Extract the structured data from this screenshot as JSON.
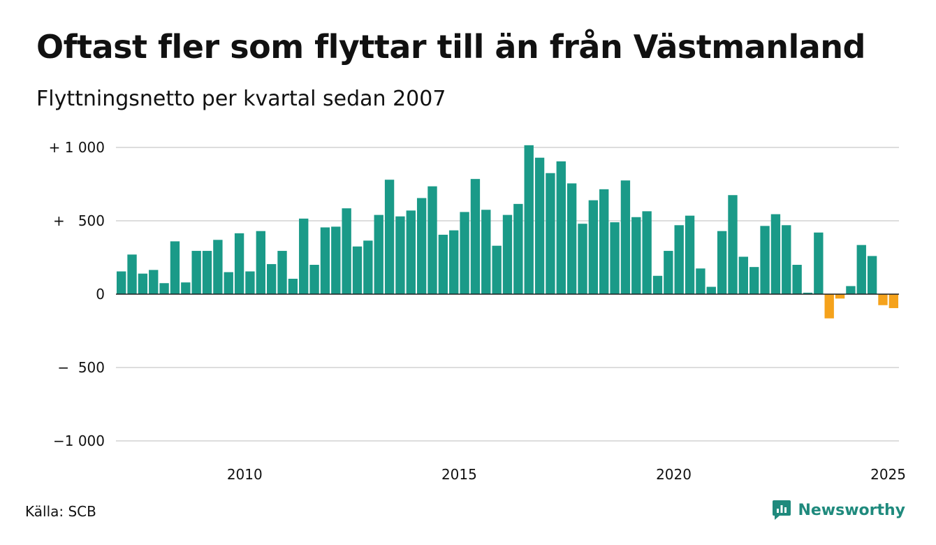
{
  "title": "Oftast fler som flyttar till än från Västmanland",
  "subtitle": "Flyttningsnetto per kvartal sedan 2007",
  "source": "Källa: SCB",
  "brand": "Newsworthy",
  "colors": {
    "positive": "#1a9a88",
    "negative": "#f5a21b",
    "grid": "#dddddd",
    "zero_line": "#222222",
    "brand": "#1f8a7d"
  },
  "chart_data": {
    "type": "bar",
    "title": "Oftast fler som flyttar till än från Västmanland",
    "subtitle": "Flyttningsnetto per kvartal sedan 2007",
    "xlabel": "",
    "ylabel": "",
    "ylim": [
      -1000,
      1000
    ],
    "grid": true,
    "y_ticks": [
      {
        "value": 1000,
        "label": "+ 1 000"
      },
      {
        "value": 500,
        "label": "+   500"
      },
      {
        "value": 0,
        "label": "0"
      },
      {
        "value": -500,
        "label": "−  500"
      },
      {
        "value": -1000,
        "label": "−1 000"
      }
    ],
    "x_ticks": [
      {
        "value": "2010",
        "label": "2010"
      },
      {
        "value": "2015",
        "label": "2015"
      },
      {
        "value": "2020",
        "label": "2020"
      },
      {
        "value": "2025",
        "label": "2025"
      }
    ],
    "categories": [
      "2007K1",
      "2007K2",
      "2007K3",
      "2007K4",
      "2008K1",
      "2008K2",
      "2008K3",
      "2008K4",
      "2009K1",
      "2009K2",
      "2009K3",
      "2009K4",
      "2010K1",
      "2010K2",
      "2010K3",
      "2010K4",
      "2011K1",
      "2011K2",
      "2011K3",
      "2011K4",
      "2012K1",
      "2012K2",
      "2012K3",
      "2012K4",
      "2013K1",
      "2013K2",
      "2013K3",
      "2013K4",
      "2014K1",
      "2014K2",
      "2014K3",
      "2014K4",
      "2015K1",
      "2015K2",
      "2015K3",
      "2015K4",
      "2016K1",
      "2016K2",
      "2016K3",
      "2016K4",
      "2017K1",
      "2017K2",
      "2017K3",
      "2017K4",
      "2018K1",
      "2018K2",
      "2018K3",
      "2018K4",
      "2019K1",
      "2019K2",
      "2019K3",
      "2019K4",
      "2020K1",
      "2020K2",
      "2020K3",
      "2020K4",
      "2021K1",
      "2021K2",
      "2021K3",
      "2021K4",
      "2022K1",
      "2022K2",
      "2022K3",
      "2022K4",
      "2023K1",
      "2023K2",
      "2023K3",
      "2023K4",
      "2024K1",
      "2024K2",
      "2024K3",
      "2024K4",
      "2025K1"
    ],
    "values": [
      155,
      270,
      140,
      165,
      75,
      360,
      80,
      295,
      295,
      370,
      150,
      415,
      155,
      430,
      205,
      295,
      105,
      515,
      200,
      455,
      460,
      585,
      325,
      365,
      540,
      780,
      530,
      570,
      655,
      735,
      405,
      435,
      560,
      785,
      575,
      330,
      540,
      615,
      1015,
      930,
      825,
      905,
      755,
      480,
      640,
      715,
      490,
      775,
      525,
      565,
      125,
      295,
      470,
      535,
      175,
      50,
      430,
      675,
      255,
      185,
      465,
      545,
      470,
      200,
      10,
      420,
      -165,
      -30,
      55,
      335,
      260,
      -75,
      -95
    ]
  }
}
